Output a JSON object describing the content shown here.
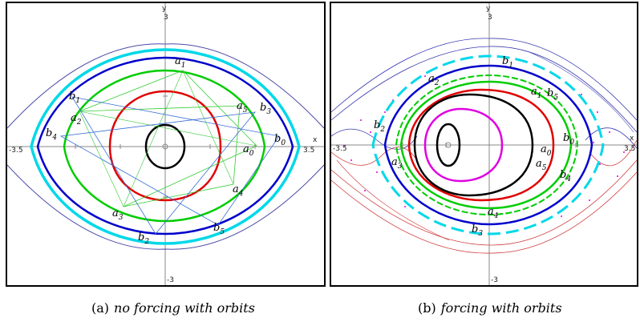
{
  "panels": [
    {
      "id": "a",
      "caption_prefix": "(a)",
      "caption_text": "no forcing with orbits",
      "axis": {
        "x_label": "x",
        "y_label": "y",
        "x_min_tick": "-3.5",
        "x_max_tick": "3.5",
        "y_max_tick": "3",
        "y_min_tick": "-3"
      },
      "point_labels": [
        {
          "base": "b",
          "sub": "1"
        },
        {
          "base": "a",
          "sub": "1"
        },
        {
          "base": "a",
          "sub": "2"
        },
        {
          "base": "a",
          "sub": "5"
        },
        {
          "base": "b",
          "sub": "3"
        },
        {
          "base": "b",
          "sub": "4"
        },
        {
          "base": "b",
          "sub": "0"
        },
        {
          "base": "a",
          "sub": "0"
        },
        {
          "base": "a",
          "sub": "4"
        },
        {
          "base": "a",
          "sub": "3"
        },
        {
          "base": "b",
          "sub": "5"
        },
        {
          "base": "b",
          "sub": "2"
        }
      ]
    },
    {
      "id": "b",
      "caption_prefix": "(b)",
      "caption_text": "forcing with orbits",
      "axis": {
        "x_label": "x",
        "y_label": "y",
        "x_min_tick": "-3.5",
        "x_max_tick": "3.5",
        "y_max_tick": "3",
        "y_min_tick": "-3"
      },
      "point_labels": [
        {
          "base": "b",
          "sub": "1"
        },
        {
          "base": "a",
          "sub": "2"
        },
        {
          "base": "a",
          "sub": "1"
        },
        {
          "base": "b",
          "sub": "5"
        },
        {
          "base": "b",
          "sub": "2"
        },
        {
          "base": "a",
          "sub": "0"
        },
        {
          "base": "b",
          "sub": "0"
        },
        {
          "base": "a",
          "sub": "3"
        },
        {
          "base": "a",
          "sub": "5"
        },
        {
          "base": "b",
          "sub": "4"
        },
        {
          "base": "a",
          "sub": "4"
        },
        {
          "base": "b",
          "sub": "3"
        }
      ]
    }
  ],
  "colors": {
    "blue": "#0000cc",
    "cyan": "#00d8e8",
    "green": "#00cc00",
    "red": "#e00000",
    "black": "#000000",
    "magenta": "#e000e0",
    "thin_blue": "#3a6fd8",
    "thin_green": "#33cc33",
    "separatrix": "#4a4aa8",
    "red_thin": "#d04040"
  }
}
